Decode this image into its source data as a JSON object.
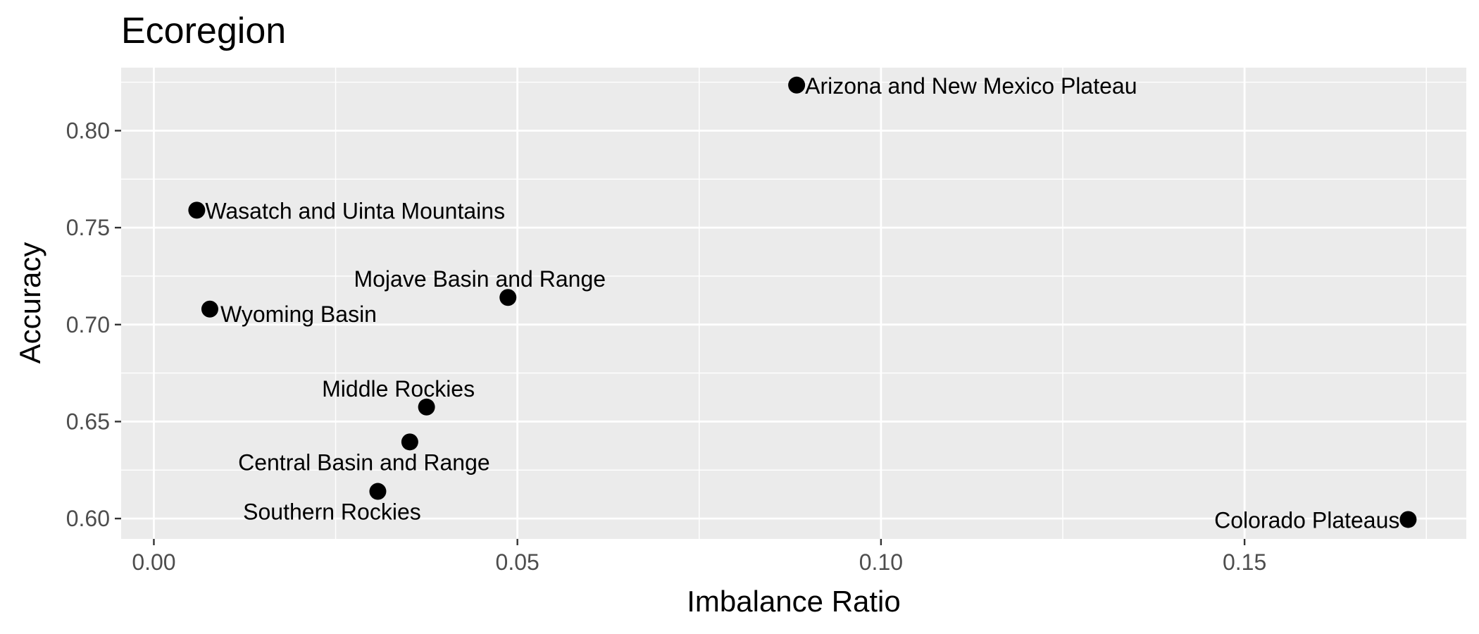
{
  "chart_data": {
    "type": "scatter",
    "title": "Ecoregion",
    "xlabel": "Imbalance Ratio",
    "ylabel": "Accuracy",
    "xlim": [
      -0.0045,
      0.1805
    ],
    "ylim": [
      0.5895,
      0.8325
    ],
    "x_ticks": [
      0.0,
      0.05,
      0.1,
      0.15
    ],
    "x_tick_labels": [
      "0.00",
      "0.05",
      "0.10",
      "0.15"
    ],
    "y_ticks": [
      0.6,
      0.65,
      0.7,
      0.75,
      0.8
    ],
    "y_tick_labels": [
      "0.60",
      "0.65",
      "0.70",
      "0.75",
      "0.80"
    ],
    "grid": true,
    "colors": {
      "panel_background": "#ebebeb",
      "grid_line": "#ffffff",
      "point": "#000000",
      "tick_label": "#4d4d4d",
      "text": "#000000"
    },
    "points": [
      {
        "label": "Arizona and New Mexico Plateau",
        "x": 0.0884,
        "y": 0.8235,
        "label_pos": "right"
      },
      {
        "label": "Wasatch and Uinta Mountains",
        "x": 0.0059,
        "y": 0.759,
        "label_pos": "right"
      },
      {
        "label": "Mojave Basin and Range",
        "x": 0.0487,
        "y": 0.714,
        "label_pos": "above-left"
      },
      {
        "label": "Wyoming Basin",
        "x": 0.0077,
        "y": 0.708,
        "label_pos": "below-right"
      },
      {
        "label": "Middle Rockies",
        "x": 0.0375,
        "y": 0.6575,
        "label_pos": "above-left"
      },
      {
        "label": "Central Basin and Range",
        "x": 0.0352,
        "y": 0.6395,
        "label_pos": "below-left"
      },
      {
        "label": "Southern Rockies",
        "x": 0.0308,
        "y": 0.614,
        "label_pos": "below-left"
      },
      {
        "label": "Colorado Plateaus",
        "x": 0.1725,
        "y": 0.5995,
        "label_pos": "left"
      }
    ]
  }
}
